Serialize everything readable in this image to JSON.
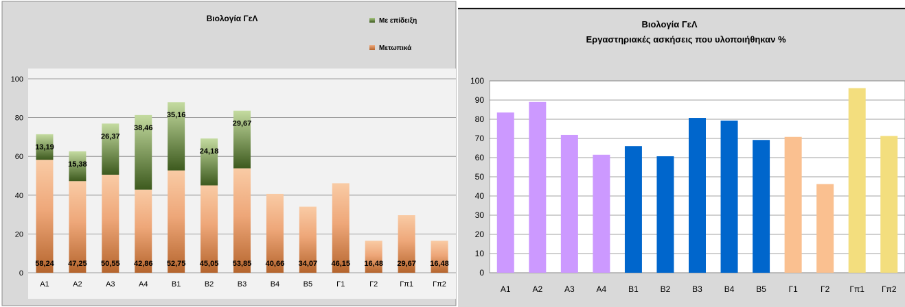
{
  "chart_data": [
    {
      "type": "bar",
      "stacked": true,
      "title": "Βιολογία ΓεΛ",
      "xlabel": "",
      "ylabel": "",
      "ylim": [
        0,
        100
      ],
      "yticks": [
        0,
        20,
        40,
        60,
        80,
        100
      ],
      "grid": true,
      "legend_position": "top-right",
      "categories": [
        "Α1",
        "Α2",
        "Α3",
        "Α4",
        "Β1",
        "Β2",
        "Β3",
        "Β4",
        "Β5",
        "Γ1",
        "Γ2",
        "Γπ1",
        "Γπ2"
      ],
      "series": [
        {
          "name": "Μετωπικά",
          "color": "#b5652d",
          "values": [
            58.24,
            47.25,
            50.55,
            42.86,
            52.75,
            45.05,
            53.85,
            40.66,
            34.07,
            46.15,
            16.48,
            29.67,
            16.48
          ],
          "labels": [
            "58,24",
            "47,25",
            "50,55",
            "42,86",
            "52,75",
            "45,05",
            "53,85",
            "40,66",
            "34,07",
            "46,15",
            "16,48",
            "29,67",
            "16,48"
          ]
        },
        {
          "name": "Με επίδειξη",
          "color": "#4f6b2a",
          "values": [
            13.19,
            15.38,
            26.37,
            38.46,
            35.16,
            24.18,
            29.67,
            0,
            0,
            0,
            0,
            0,
            0
          ],
          "labels": [
            "13,19",
            "15,38",
            "26,37",
            "38,46",
            "35,16",
            "24,18",
            "29,67",
            "",
            "",
            "",
            "",
            "",
            ""
          ]
        }
      ]
    },
    {
      "type": "bar",
      "title": "Βιολογία ΓεΛ",
      "subtitle": "Εργαστηριακές ασκήσεις που υλοποιήθηκαν %",
      "xlabel": "",
      "ylabel": "",
      "ylim": [
        0,
        100
      ],
      "yticks": [
        0,
        10,
        20,
        30,
        40,
        50,
        60,
        70,
        80,
        90,
        100
      ],
      "grid": true,
      "categories": [
        "Α1",
        "Α2",
        "Α3",
        "Α4",
        "Β1",
        "Β2",
        "Β3",
        "Β4",
        "Β5",
        "Γ1",
        "Γ2",
        "Γπ1",
        "Γπ2"
      ],
      "values": [
        83.5,
        89,
        71.8,
        61.5,
        66,
        60.7,
        80.7,
        79.3,
        69.2,
        70.8,
        46.2,
        96.2,
        71.3
      ],
      "colors": [
        "#cc99ff",
        "#cc99ff",
        "#cc99ff",
        "#cc99ff",
        "#0066cc",
        "#0066cc",
        "#0066cc",
        "#0066cc",
        "#0066cc",
        "#fac090",
        "#fac090",
        "#f3de7e",
        "#f3de7e"
      ]
    }
  ]
}
